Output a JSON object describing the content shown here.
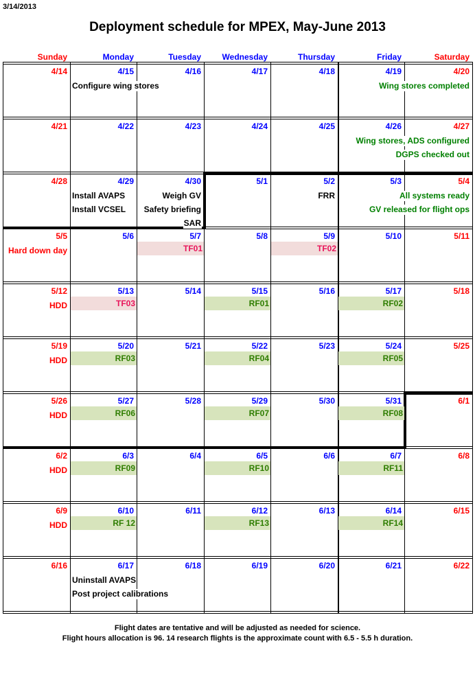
{
  "print_date": "3/14/2013",
  "title": "Deployment schedule for MPEX, May-June 2013",
  "colors": {
    "weekend": "#ff0000",
    "weekday": "#0000ff",
    "done": "#008000",
    "note": "#000000",
    "tf_bg": "#f2dcdb",
    "tf_text": "#e8145a",
    "rf_bg": "#d7e4bc",
    "rf_text": "#2e7d00",
    "hdd": "#ff0000"
  },
  "days": [
    "Sunday",
    "Monday",
    "Tuesday",
    "Wednesday",
    "Thursday",
    "Friday",
    "Saturday"
  ],
  "weeks": [
    {
      "dates": [
        "4/14",
        "4/15",
        "4/16",
        "4/17",
        "4/18",
        "4/19",
        "4/20"
      ],
      "events": [
        {
          "col": 1,
          "span": 2,
          "align": "left",
          "color": "note",
          "lines": [
            "Configure wing stores"
          ]
        },
        {
          "col": 5,
          "span": 2,
          "align": "right",
          "color": "done",
          "lines": [
            "Wing stores completed"
          ]
        }
      ],
      "bars": []
    },
    {
      "dates": [
        "4/21",
        "4/22",
        "4/23",
        "4/24",
        "4/25",
        "4/26",
        "4/27"
      ],
      "events": [
        {
          "col": 5,
          "span": 2,
          "align": "right",
          "color": "done",
          "lines": [
            "Wing stores, ADS configured",
            "DGPS checked out"
          ]
        }
      ],
      "bars": []
    },
    {
      "dates": [
        "4/28",
        "4/29",
        "4/30",
        "5/1",
        "5/2",
        "5/3",
        "5/4"
      ],
      "events": [
        {
          "col": 1,
          "span": 1,
          "align": "left",
          "color": "note",
          "lines": [
            "Install AVAPS",
            "Install VCSEL"
          ]
        },
        {
          "col": 2,
          "span": 1,
          "align": "right",
          "color": "note",
          "lines": [
            "Weigh GV",
            "Safety briefing",
            "SAR"
          ]
        },
        {
          "col": 4,
          "span": 1,
          "align": "right",
          "color": "note",
          "lines": [
            "FRR"
          ]
        },
        {
          "col": 5,
          "span": 2,
          "align": "right",
          "color": "done",
          "lines": [
            "All systems ready",
            "GV released for flight ops"
          ]
        }
      ],
      "bars": []
    },
    {
      "dates": [
        "5/5",
        "5/6",
        "5/7",
        "5/8",
        "5/9",
        "5/10",
        "5/11"
      ],
      "events": [
        {
          "col": 0,
          "span": 1,
          "align": "right",
          "color": "hdd",
          "lines": [
            "Hard down day"
          ]
        }
      ],
      "bars": [
        {
          "col": 2,
          "kind": "tf",
          "label": "TF01"
        },
        {
          "col": 4,
          "kind": "tf",
          "label": "TF02"
        }
      ]
    },
    {
      "dates": [
        "5/12",
        "5/13",
        "5/14",
        "5/15",
        "5/16",
        "5/17",
        "5/18"
      ],
      "events": [
        {
          "col": 0,
          "span": 1,
          "align": "right",
          "color": "hdd",
          "lines": [
            "HDD"
          ]
        }
      ],
      "bars": [
        {
          "col": 1,
          "kind": "tf",
          "label": "TF03"
        },
        {
          "col": 3,
          "kind": "rf",
          "label": "RF01"
        },
        {
          "col": 5,
          "kind": "rf",
          "label": "RF02"
        }
      ]
    },
    {
      "dates": [
        "5/19",
        "5/20",
        "5/21",
        "5/22",
        "5/23",
        "5/24",
        "5/25"
      ],
      "events": [
        {
          "col": 0,
          "span": 1,
          "align": "right",
          "color": "hdd",
          "lines": [
            "HDD"
          ]
        }
      ],
      "bars": [
        {
          "col": 1,
          "kind": "rf",
          "label": "RF03"
        },
        {
          "col": 3,
          "kind": "rf",
          "label": "RF04"
        },
        {
          "col": 5,
          "kind": "rf",
          "label": "RF05"
        }
      ]
    },
    {
      "dates": [
        "5/26",
        "5/27",
        "5/28",
        "5/29",
        "5/30",
        "5/31",
        "6/1"
      ],
      "events": [
        {
          "col": 0,
          "span": 1,
          "align": "right",
          "color": "hdd",
          "lines": [
            "HDD"
          ]
        }
      ],
      "bars": [
        {
          "col": 1,
          "kind": "rf",
          "label": "RF06"
        },
        {
          "col": 3,
          "kind": "rf",
          "label": "RF07"
        },
        {
          "col": 5,
          "kind": "rf",
          "label": "RF08"
        }
      ]
    },
    {
      "dates": [
        "6/2",
        "6/3",
        "6/4",
        "6/5",
        "6/6",
        "6/7",
        "6/8"
      ],
      "events": [
        {
          "col": 0,
          "span": 1,
          "align": "right",
          "color": "hdd",
          "lines": [
            "HDD"
          ]
        }
      ],
      "bars": [
        {
          "col": 1,
          "kind": "rf",
          "label": "RF09"
        },
        {
          "col": 3,
          "kind": "rf",
          "label": "RF10"
        },
        {
          "col": 5,
          "kind": "rf",
          "label": "RF11"
        }
      ]
    },
    {
      "dates": [
        "6/9",
        "6/10",
        "6/11",
        "6/12",
        "6/13",
        "6/14",
        "6/15"
      ],
      "events": [
        {
          "col": 0,
          "span": 1,
          "align": "right",
          "color": "hdd",
          "lines": [
            "HDD"
          ]
        }
      ],
      "bars": [
        {
          "col": 1,
          "kind": "rf",
          "label": "RF 12"
        },
        {
          "col": 3,
          "kind": "rf",
          "label": "RF13"
        },
        {
          "col": 5,
          "kind": "rf",
          "label": "RF14"
        }
      ]
    },
    {
      "dates": [
        "6/16",
        "6/17",
        "6/18",
        "6/19",
        "6/20",
        "6/21",
        "6/22"
      ],
      "events": [
        {
          "col": 1,
          "span": 3,
          "align": "left",
          "color": "note",
          "lines": [
            "Uninstall AVAPS",
            "Post project calibrations"
          ]
        }
      ],
      "bars": []
    }
  ],
  "footer": [
    "Flight dates are tentative and will be adjusted as needed for science.",
    "Flight hours allocation is 96. 14 research flights is the approximate count with 6.5 - 5.5 h duration."
  ]
}
